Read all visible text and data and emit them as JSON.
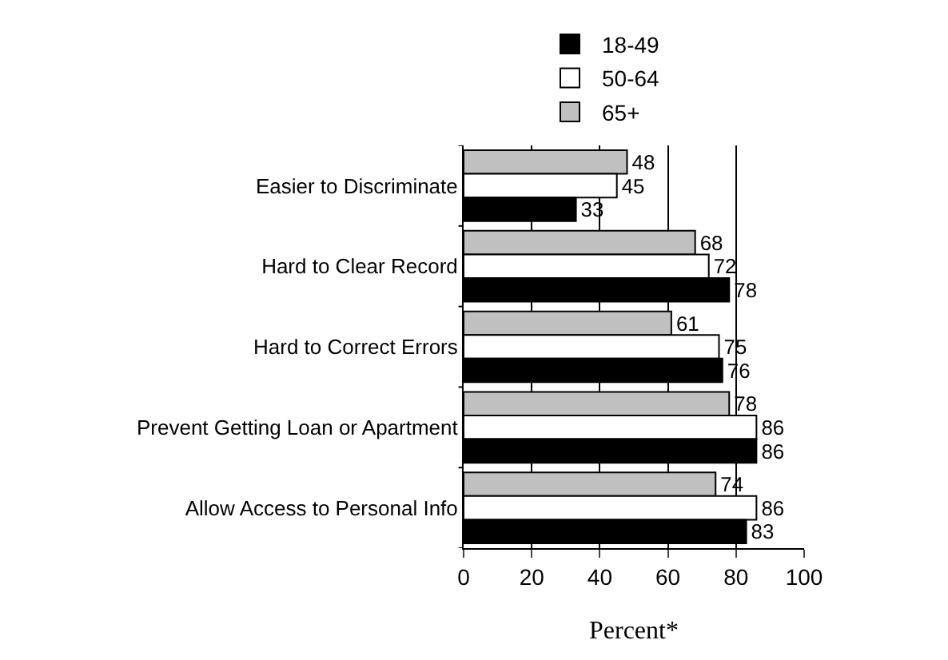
{
  "chart_data": {
    "type": "bar",
    "orientation": "horizontal",
    "xlabel": "Percent*",
    "categories": [
      "Easier to Discriminate",
      "Hard to Clear Record",
      "Hard to Correct Errors",
      "Prevent Getting Loan or Apartment",
      "Allow Access to Personal Info"
    ],
    "series": [
      {
        "name": "65+",
        "color": "#c0c0c0",
        "values": [
          48,
          68,
          61,
          78,
          74
        ]
      },
      {
        "name": "50-64",
        "color": "#ffffff",
        "values": [
          45,
          72,
          75,
          86,
          86
        ]
      },
      {
        "name": "18-49",
        "color": "#000000",
        "values": [
          33,
          78,
          76,
          86,
          83
        ]
      }
    ],
    "xlim": [
      0,
      100
    ],
    "xticks": [
      0,
      20,
      40,
      60,
      80,
      100
    ],
    "grid": "x",
    "legend": "top",
    "data_labels": true
  }
}
